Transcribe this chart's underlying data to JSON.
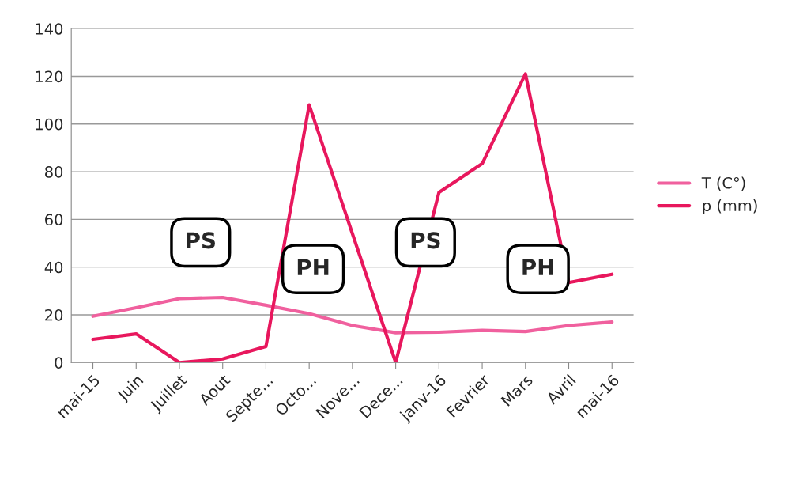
{
  "chart_data": {
    "type": "line",
    "categories": [
      "mai-15",
      "Juin",
      "Juillet",
      "Aout",
      "Septe...",
      "Octo...",
      "Nove...",
      "Dece...",
      "janv-16",
      "Fevrier",
      "Mars",
      "Avril",
      "mai-16"
    ],
    "series": [
      {
        "name": "T (C°)",
        "color": "#f0609e",
        "values": [
          19.4,
          23,
          26.8,
          27.3,
          24,
          20.5,
          15.5,
          12.5,
          12.7,
          13.5,
          13,
          15.5,
          17
        ]
      },
      {
        "name": "p (mm)",
        "color": "#e8175d",
        "values": [
          9.7,
          12,
          0,
          1.5,
          6.7,
          108,
          54,
          0,
          71.3,
          83.4,
          121,
          33.5,
          37
        ]
      }
    ],
    "ylim": [
      0,
      140
    ],
    "yticks": [
      0,
      20,
      40,
      60,
      80,
      100,
      120,
      140
    ],
    "grid": "y",
    "legend": "right",
    "marker": "none",
    "line_style": "solid",
    "annotations": [
      "PS",
      "PH",
      "PS",
      "PH"
    ]
  }
}
